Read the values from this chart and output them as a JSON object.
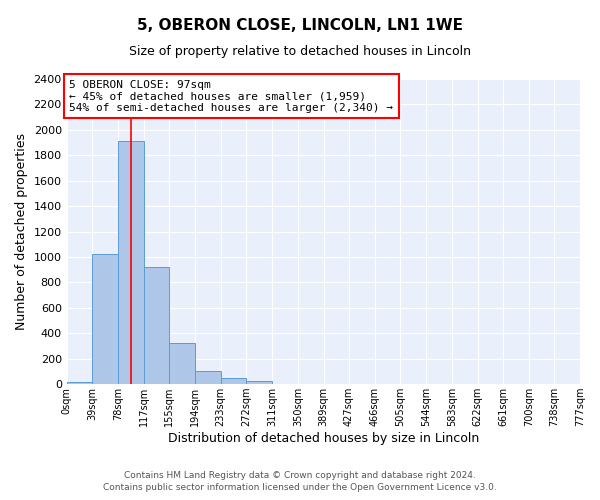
{
  "title": "5, OBERON CLOSE, LINCOLN, LN1 1WE",
  "subtitle": "Size of property relative to detached houses in Lincoln",
  "xlabel": "Distribution of detached houses by size in Lincoln",
  "ylabel": "Number of detached properties",
  "bin_edges": [
    0,
    39,
    78,
    117,
    155,
    194,
    233,
    272,
    311,
    350,
    389,
    427,
    466,
    505,
    544,
    583,
    622,
    661,
    700,
    738,
    777
  ],
  "bin_labels": [
    "0sqm",
    "39sqm",
    "78sqm",
    "117sqm",
    "155sqm",
    "194sqm",
    "233sqm",
    "272sqm",
    "311sqm",
    "350sqm",
    "389sqm",
    "427sqm",
    "466sqm",
    "505sqm",
    "544sqm",
    "583sqm",
    "622sqm",
    "661sqm",
    "700sqm",
    "738sqm",
    "777sqm"
  ],
  "bar_heights": [
    20,
    1020,
    1910,
    920,
    320,
    105,
    50,
    25,
    5,
    0,
    0,
    0,
    0,
    0,
    0,
    0,
    0,
    0,
    0,
    0
  ],
  "bar_color": "#aec6e8",
  "bar_edge_color": "#5b9bd5",
  "background_color": "#eaf0fb",
  "grid_color": "#ffffff",
  "ylim": [
    0,
    2400
  ],
  "yticks": [
    0,
    200,
    400,
    600,
    800,
    1000,
    1200,
    1400,
    1600,
    1800,
    2000,
    2200,
    2400
  ],
  "red_line_x": 97,
  "ann_line1": "5 OBERON CLOSE: 97sqm",
  "ann_line2": "← 45% of detached houses are smaller (1,959)",
  "ann_line3": "54% of semi-detached houses are larger (2,340) →",
  "footer_line1": "Contains HM Land Registry data © Crown copyright and database right 2024.",
  "footer_line2": "Contains public sector information licensed under the Open Government Licence v3.0."
}
